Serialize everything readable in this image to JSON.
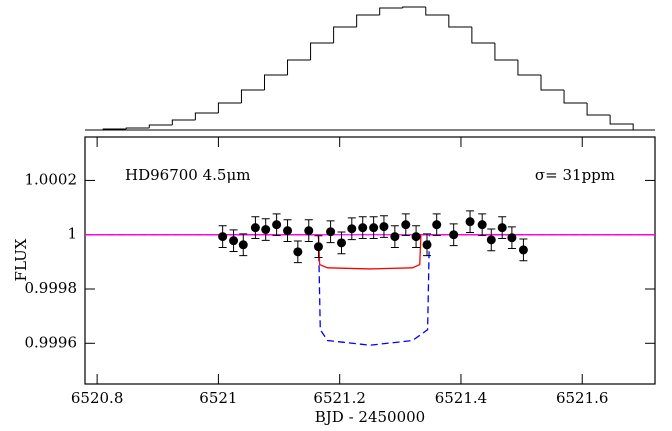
{
  "chart_data": [
    {
      "type": "histogram",
      "color": "#000000",
      "bins": [
        6520.81,
        6520.848,
        6520.886,
        6520.924,
        6520.962,
        6521.0,
        6521.038,
        6521.076,
        6521.114,
        6521.152,
        6521.19,
        6521.228,
        6521.266,
        6521.304,
        6521.342,
        6521.38,
        6521.418,
        6521.456,
        6521.494,
        6521.532,
        6521.57,
        6521.608,
        6521.646,
        6521.684
      ],
      "counts": [
        1,
        2,
        5,
        10,
        17,
        27,
        40,
        55,
        70,
        87,
        103,
        115,
        122,
        123,
        115,
        103,
        87,
        70,
        55,
        40,
        27,
        15,
        6
      ],
      "ylim": [
        0,
        125
      ]
    },
    {
      "type": "scatter",
      "annotations": [
        "HD96700 4.5μm",
        "σ= 31ppm"
      ],
      "xlabel": "BJD - 2450000",
      "ylabel": "FLUX",
      "xlim": [
        6520.78,
        6521.72
      ],
      "ylim": [
        0.99945,
        1.00036
      ],
      "xticks": [
        6520.8,
        6521,
        6521.2,
        6521.4,
        6521.6
      ],
      "yticks": [
        0.9996,
        0.9998,
        1,
        1.0002
      ],
      "points": {
        "color": "#000000",
        "x": [
          6521.007,
          6521.025,
          6521.041,
          6521.061,
          6521.078,
          6521.096,
          6521.114,
          6521.131,
          6521.149,
          6521.165,
          6521.185,
          6521.203,
          6521.22,
          6521.238,
          6521.256,
          6521.273,
          6521.291,
          6521.309,
          6521.326,
          6521.344,
          6521.36,
          6521.388,
          6521.415,
          6521.435,
          6521.45,
          6521.468,
          6521.484,
          6521.503
        ],
        "values": [
          0.999993,
          0.999978,
          0.999963,
          1.000026,
          1.000019,
          1.000037,
          1.000015,
          0.999937,
          1.000015,
          0.999956,
          1.000011,
          0.99997,
          1.000022,
          1.000026,
          1.000026,
          1.00003,
          0.999993,
          1.000037,
          0.999993,
          0.999963,
          1.000037,
          1.0,
          1.000048,
          1.000037,
          0.999981,
          1.000026,
          0.999989,
          0.999944
        ],
        "errors": [
          4e-05,
          4e-05,
          4e-05,
          4e-05,
          4e-05,
          4e-05,
          4e-05,
          4e-05,
          4e-05,
          4e-05,
          4e-05,
          4e-05,
          4e-05,
          4e-05,
          4e-05,
          4e-05,
          4e-05,
          4e-05,
          4e-05,
          4e-05,
          4e-05,
          4e-05,
          4e-05,
          4e-05,
          4e-05,
          4e-05,
          4e-05,
          4e-05
        ]
      },
      "models": [
        {
          "color": "#0000ff",
          "dashed": true,
          "x": [
            6520.78,
            6521.165,
            6521.168,
            6521.18,
            6521.25,
            6521.32,
            6521.345,
            6521.348,
            6521.72
          ],
          "values": [
            1,
            1,
            0.99965,
            0.99961,
            0.999593,
            0.99961,
            0.99965,
            1,
            1
          ]
        },
        {
          "color": "#ff0000",
          "dashed": false,
          "x": [
            6520.78,
            6521.165,
            6521.167,
            6521.18,
            6521.25,
            6521.32,
            6521.332,
            6521.334,
            6521.72
          ],
          "values": [
            1,
            1,
            0.99989,
            0.999878,
            0.999874,
            0.999878,
            0.99989,
            1,
            1
          ]
        },
        {
          "color": "#ff00ff",
          "dashed": false,
          "x": [
            6520.78,
            6521.72
          ],
          "values": [
            1,
            1
          ]
        }
      ]
    }
  ]
}
